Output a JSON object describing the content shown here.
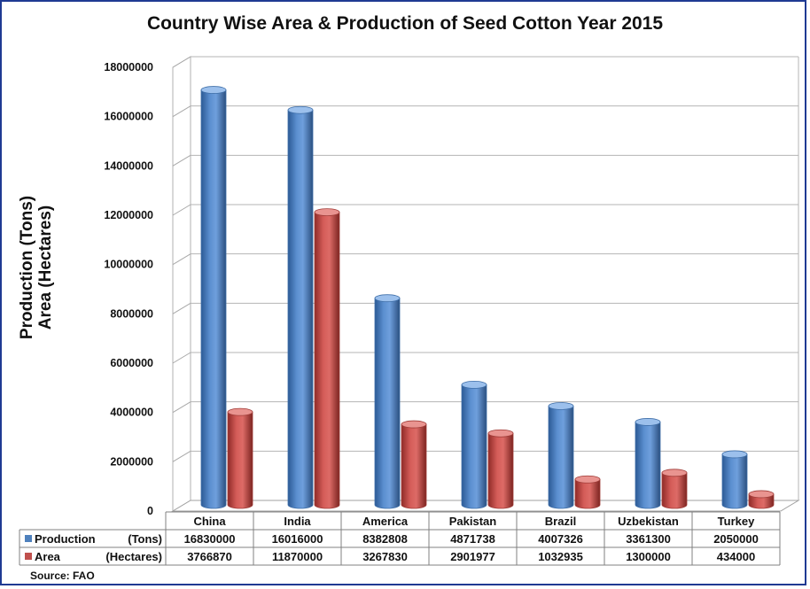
{
  "chart_data": {
    "type": "bar",
    "title": "Country Wise Area & Production of Seed Cotton Year 2015",
    "ylabel_lines": [
      "Production (Tons)",
      "Area (Hectares)"
    ],
    "xlabel": "",
    "ylim": [
      0,
      18000000
    ],
    "yticks": [
      "0",
      "2000000",
      "4000000",
      "6000000",
      "8000000",
      "10000000",
      "12000000",
      "14000000",
      "16000000",
      "18000000"
    ],
    "categories": [
      "China",
      "India",
      "America",
      "Pakistan",
      "Brazil",
      "Uzbekistan",
      "Turkey"
    ],
    "series": [
      {
        "name": "Production",
        "unit": "(Tons)",
        "color": "#4f81bd",
        "values": [
          16830000,
          16016000,
          8382808,
          4871738,
          4007326,
          3361300,
          2050000
        ],
        "labels": [
          "16830000",
          "16016000",
          "8382808",
          "4871738",
          "4007326",
          "3361300",
          "2050000"
        ]
      },
      {
        "name": "Area",
        "unit": "(Hectares)",
        "color": "#c0504d",
        "values": [
          3766870,
          11870000,
          3267830,
          2901977,
          1032935,
          1300000,
          434000
        ],
        "labels": [
          "3766870",
          "11870000",
          "3267830",
          "2901977",
          "1032935",
          "1300000",
          "434000"
        ]
      }
    ],
    "grid": true,
    "legend": "data-table",
    "source": "Source: FAO"
  }
}
